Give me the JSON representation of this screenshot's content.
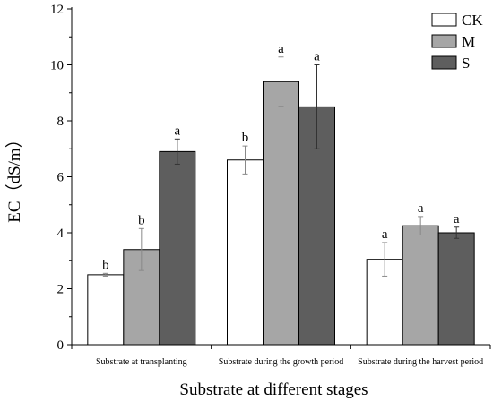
{
  "chart_data": {
    "type": "bar",
    "xlabel": "Substrate at different stages",
    "ylabel": "EC（dS/m）",
    "ylim": [
      0,
      12
    ],
    "yticks": [
      0,
      2,
      4,
      6,
      8,
      10,
      12
    ],
    "grid": false,
    "legend_position": "top-right",
    "categories": [
      "Substrate at transplanting",
      "Substrate during the growth period",
      "Substrate during the harvest period"
    ],
    "series": [
      {
        "name": "CK",
        "color": "#ffffff",
        "values": [
          2.5,
          6.6,
          3.05
        ],
        "errors": [
          0.05,
          0.5,
          0.6
        ],
        "labels": [
          "b",
          "b",
          "a"
        ]
      },
      {
        "name": "M",
        "color": "#a6a6a6",
        "values": [
          3.4,
          9.4,
          4.25
        ],
        "errors": [
          0.75,
          0.88,
          0.33
        ],
        "labels": [
          "b",
          "a",
          "a"
        ]
      },
      {
        "name": "S",
        "color": "#5e5e5e",
        "values": [
          6.9,
          8.5,
          4.0
        ],
        "errors": [
          0.45,
          1.5,
          0.2
        ],
        "labels": [
          "a",
          "a",
          "a"
        ]
      }
    ]
  }
}
